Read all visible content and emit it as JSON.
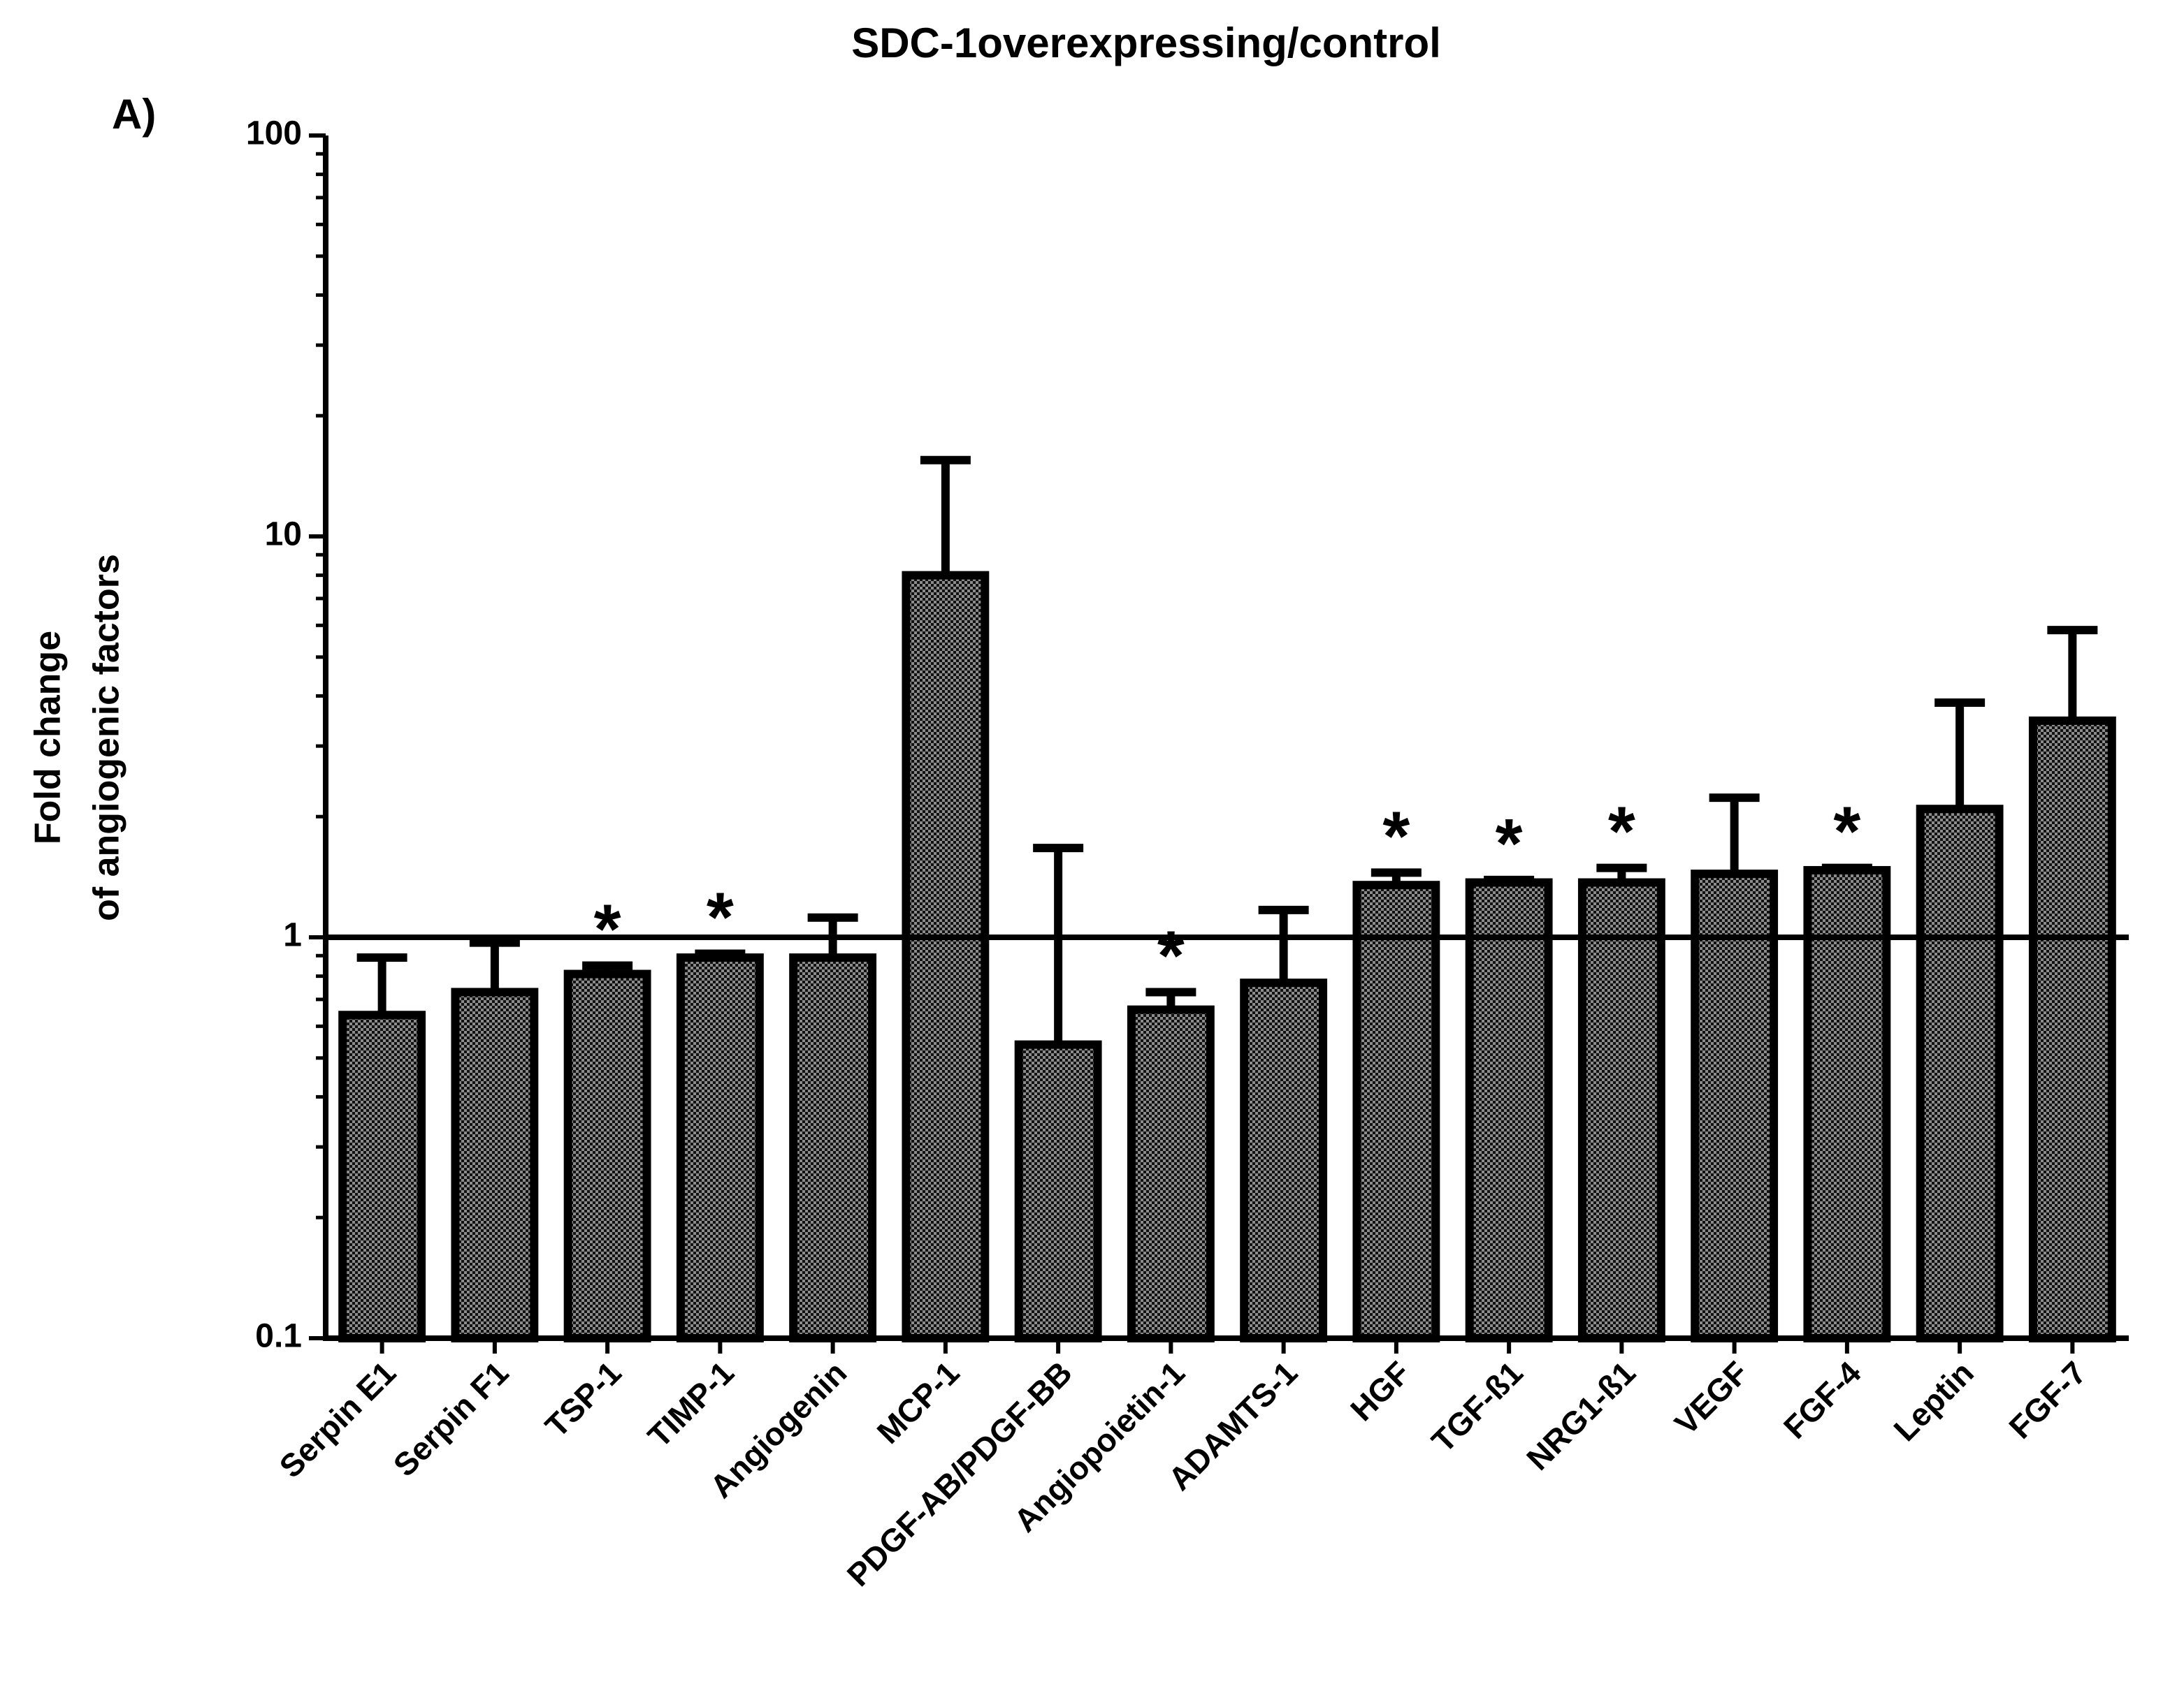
{
  "chart_data": {
    "type": "bar",
    "title": "SDC-1overexpressing/control",
    "panel_label": "A)",
    "y_label": [
      "Fold change",
      "of angiogenic factors"
    ],
    "categories": [
      "Serpin E1",
      "Serpin F1",
      "TSP-1",
      "TIMP-1",
      "Angiogenin",
      "MCP-1",
      "PDGF-AB/PDGF-BB",
      "Angiopoietin-1",
      "ADAMTS-1",
      "HGF",
      "TGF-ß1",
      "NRG1-ß1",
      "VEGF",
      "FGF-4",
      "Leptin",
      "FGF-7"
    ],
    "values": [
      0.64,
      0.73,
      0.81,
      0.89,
      0.89,
      8,
      0.54,
      0.66,
      0.77,
      1.35,
      1.37,
      1.37,
      1.44,
      1.47,
      2.09,
      3.47
    ],
    "errors": [
      0.25,
      0.24,
      0.04,
      0.02,
      0.23,
      7.5,
      1.13,
      0.07,
      0.4,
      0.1,
      0.02,
      0.12,
      0.79,
      0.02,
      1.76,
      2.37
    ],
    "color": "#8c8c8c",
    "annotations": [
      {
        "text": "*",
        "x": "TSP-1"
      },
      {
        "text": "*",
        "x": "TIMP-1"
      },
      {
        "text": "*",
        "x": "Angiopoietin-1"
      },
      {
        "text": "*",
        "x": "HGF"
      },
      {
        "text": "*",
        "x": "TGF-ß1"
      },
      {
        "text": "*",
        "x": "NRG1-ß1"
      },
      {
        "text": "*",
        "x": "FGF-4"
      }
    ],
    "reference_line": 1,
    "log_y": true,
    "ylim": [
      0.1,
      100
    ],
    "yticks": [
      0.1,
      1,
      10,
      100
    ],
    "yminorticks": [
      0.2,
      0.3,
      0.4,
      0.5,
      0.6,
      0.7,
      0.8,
      0.9,
      2,
      3,
      4,
      5,
      6,
      7,
      8,
      9,
      20,
      30,
      40,
      50,
      60,
      70,
      80,
      90
    ]
  }
}
